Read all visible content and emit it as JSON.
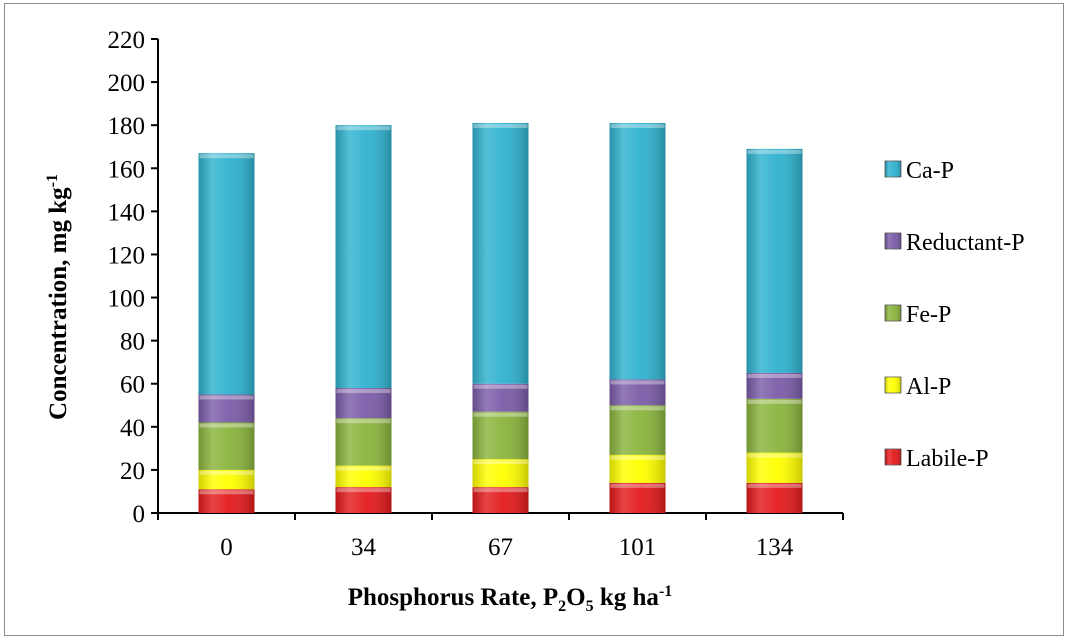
{
  "chart_data": {
    "type": "bar",
    "stacked": true,
    "categories": [
      "0",
      "34",
      "67",
      "101",
      "134"
    ],
    "series": [
      {
        "name": "Labile-P",
        "color": "#e31a1c",
        "values": [
          11,
          12,
          12,
          14,
          14
        ]
      },
      {
        "name": "Al-P",
        "color": "#ffff00",
        "values": [
          9,
          10,
          13,
          13,
          14
        ]
      },
      {
        "name": "Fe-P",
        "color": "#8ab43c",
        "values": [
          22,
          22,
          22,
          23,
          25
        ]
      },
      {
        "name": "Reductant-P",
        "color": "#7b5ca8",
        "values": [
          13,
          14,
          13,
          12,
          12
        ]
      },
      {
        "name": "Ca-P",
        "color": "#2fb2cf",
        "values": [
          112,
          122,
          121,
          119,
          104
        ]
      }
    ],
    "totals": [
      167,
      180,
      181,
      181,
      169
    ],
    "ylim": [
      0,
      220
    ],
    "yticks": [
      "0",
      "20",
      "40",
      "60",
      "80",
      "100",
      "120",
      "140",
      "160",
      "180",
      "200",
      "220"
    ],
    "xlabel": {
      "main": "Phosphorus Rate, P",
      "sub": "2",
      "mid": "O",
      "sub2": "5",
      "rest": " kg ha",
      "sup": "-1"
    },
    "ylabel": {
      "main": "Concentration, mg kg",
      "sup": "-1"
    },
    "legend_position": "right",
    "grid": false
  }
}
